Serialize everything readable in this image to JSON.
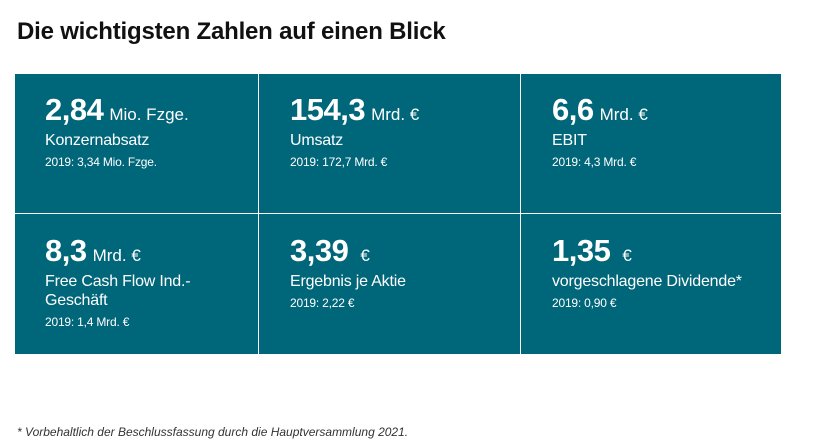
{
  "title": "Die wichtigsten Zahlen auf einen Blick",
  "tiles": [
    {
      "value": "2,84",
      "unit": "Mio. Fzge.",
      "label": "Konzernabsatz",
      "prev": "2019: 3,34 Mio. Fzge."
    },
    {
      "value": "154,3",
      "unit": "Mrd. €",
      "label": "Umsatz",
      "prev": "2019: 172,7 Mrd. €"
    },
    {
      "value": "6,6",
      "unit": "Mrd. €",
      "label": "EBIT",
      "prev": "2019: 4,3 Mrd. €"
    },
    {
      "value": "8,3",
      "unit": "Mrd. €",
      "label": "Free Cash Flow Ind.-\nGeschäft",
      "prev": "2019: 1,4 Mrd. €"
    },
    {
      "value": "3,39",
      "unit": "€",
      "label": "Ergebnis je Aktie",
      "prev": "2019: 2,22 €"
    },
    {
      "value": "1,35",
      "unit": "€",
      "label": "vorgeschlagene Dividende*",
      "prev": "2019: 0,90 €"
    }
  ],
  "footnote": "* Vorbehaltlich der Beschlussfassung durch die Hauptversammlung 2021.",
  "colors": {
    "tile_background": "#006679",
    "tile_text": "#ffffff",
    "title_text": "#111111"
  }
}
